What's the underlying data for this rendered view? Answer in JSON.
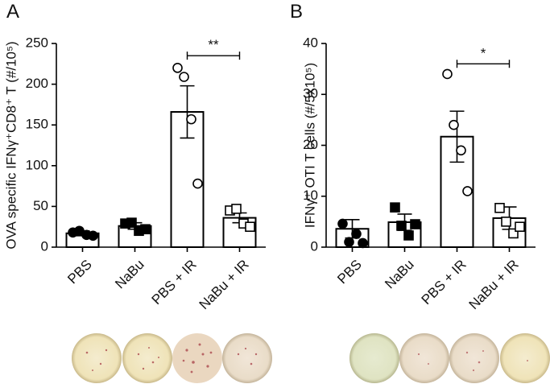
{
  "chart_data": [
    {
      "type": "bar",
      "panel": "A",
      "y_label": "OVA specific IFNγ⁺CD8⁺ T (#/10⁵)",
      "categories": [
        "PBS",
        "NaBu",
        "PBS + IR",
        "NaBu + IR"
      ],
      "values": [
        17,
        26,
        166,
        36
      ],
      "errors": [
        3,
        4,
        32,
        6
      ],
      "points": [
        [
          18,
          20,
          15,
          14
        ],
        [
          29,
          30,
          20,
          22
        ],
        [
          220,
          209,
          157,
          78
        ],
        [
          45,
          47,
          29,
          25
        ]
      ],
      "markers": [
        "circle-filled",
        "square-filled",
        "circle-open",
        "square-open"
      ],
      "color": "#000000",
      "ylim": [
        0,
        250
      ],
      "yticks": [
        0,
        50,
        100,
        150,
        200,
        250
      ],
      "significance": {
        "categories": [
          "PBS + IR",
          "NaBu + IR"
        ],
        "label": "**",
        "value": 235
      }
    },
    {
      "type": "bar",
      "panel": "B",
      "y_label": "IFNγ⁺ OTI T cells (#/5x10⁵)",
      "categories": [
        "PBS",
        "NaBu",
        "PBS + IR",
        "NaBu + IR"
      ],
      "values": [
        3.6,
        4.9,
        21.7,
        5.7
      ],
      "errors": [
        1.8,
        1.6,
        5,
        2.2
      ],
      "points": [
        [
          4.6,
          1.0,
          2.6,
          0.8
        ],
        [
          7.8,
          4.2,
          2.3,
          4.5
        ],
        [
          34,
          24,
          19,
          11
        ],
        [
          7.7,
          5,
          2.7,
          4
        ]
      ],
      "markers": [
        "circle-filled",
        "square-filled",
        "circle-open",
        "square-open"
      ],
      "color": "#000000",
      "ylim": [
        0,
        40
      ],
      "yticks": [
        0,
        10,
        20,
        30,
        40
      ],
      "significance": {
        "categories": [
          "PBS + IR",
          "NaBu + IR"
        ],
        "label": "*",
        "value": 36
      }
    }
  ]
}
